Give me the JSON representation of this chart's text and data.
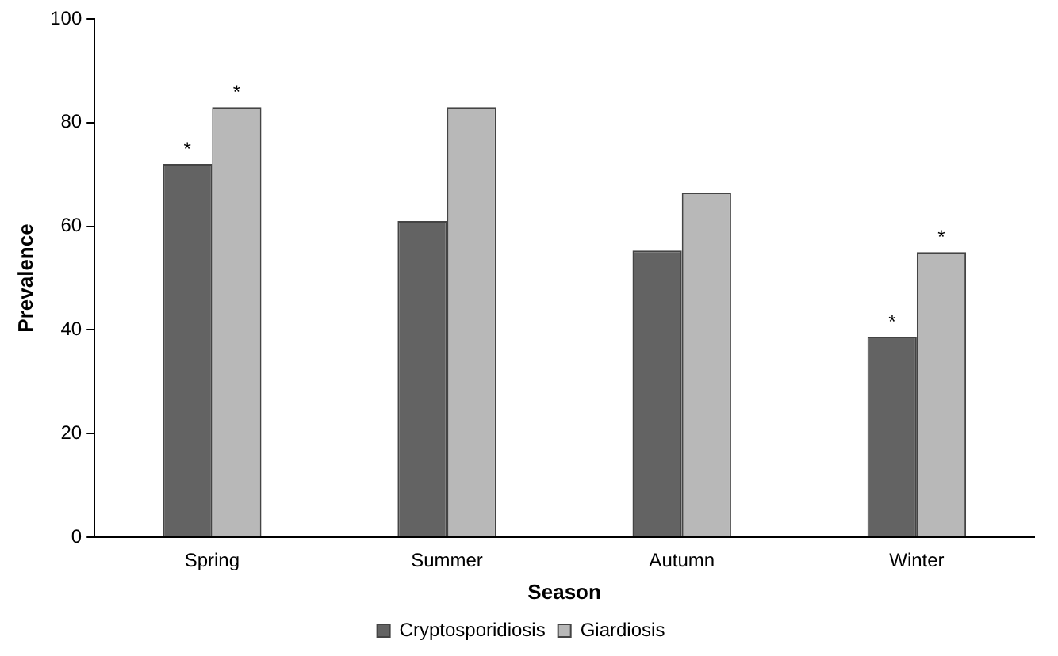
{
  "chart_data": {
    "type": "bar",
    "xlabel": "Season",
    "ylabel": "Prevalence",
    "categories": [
      "Spring",
      "Summer",
      "Autumn",
      "Winter"
    ],
    "series": [
      {
        "name": "Cryptosporidiosis",
        "color": "#636363",
        "values": [
          72,
          61,
          55.3,
          38.7
        ]
      },
      {
        "name": "Giardiosis",
        "color": "#b8b8b8",
        "values": [
          83,
          83,
          66.5,
          55
        ]
      }
    ],
    "ylim": [
      0,
      100
    ],
    "yticks": [
      0,
      20,
      40,
      60,
      80,
      100
    ],
    "grid": false,
    "legend": "bottom",
    "annotations": [
      {
        "text": "*",
        "x": "Spring",
        "y": 72
      },
      {
        "text": "*",
        "x": "Spring",
        "y": 83
      },
      {
        "text": "*",
        "x": "Winter",
        "y": 38.7
      },
      {
        "text": "*",
        "x": "Winter",
        "y": 55
      }
    ]
  }
}
